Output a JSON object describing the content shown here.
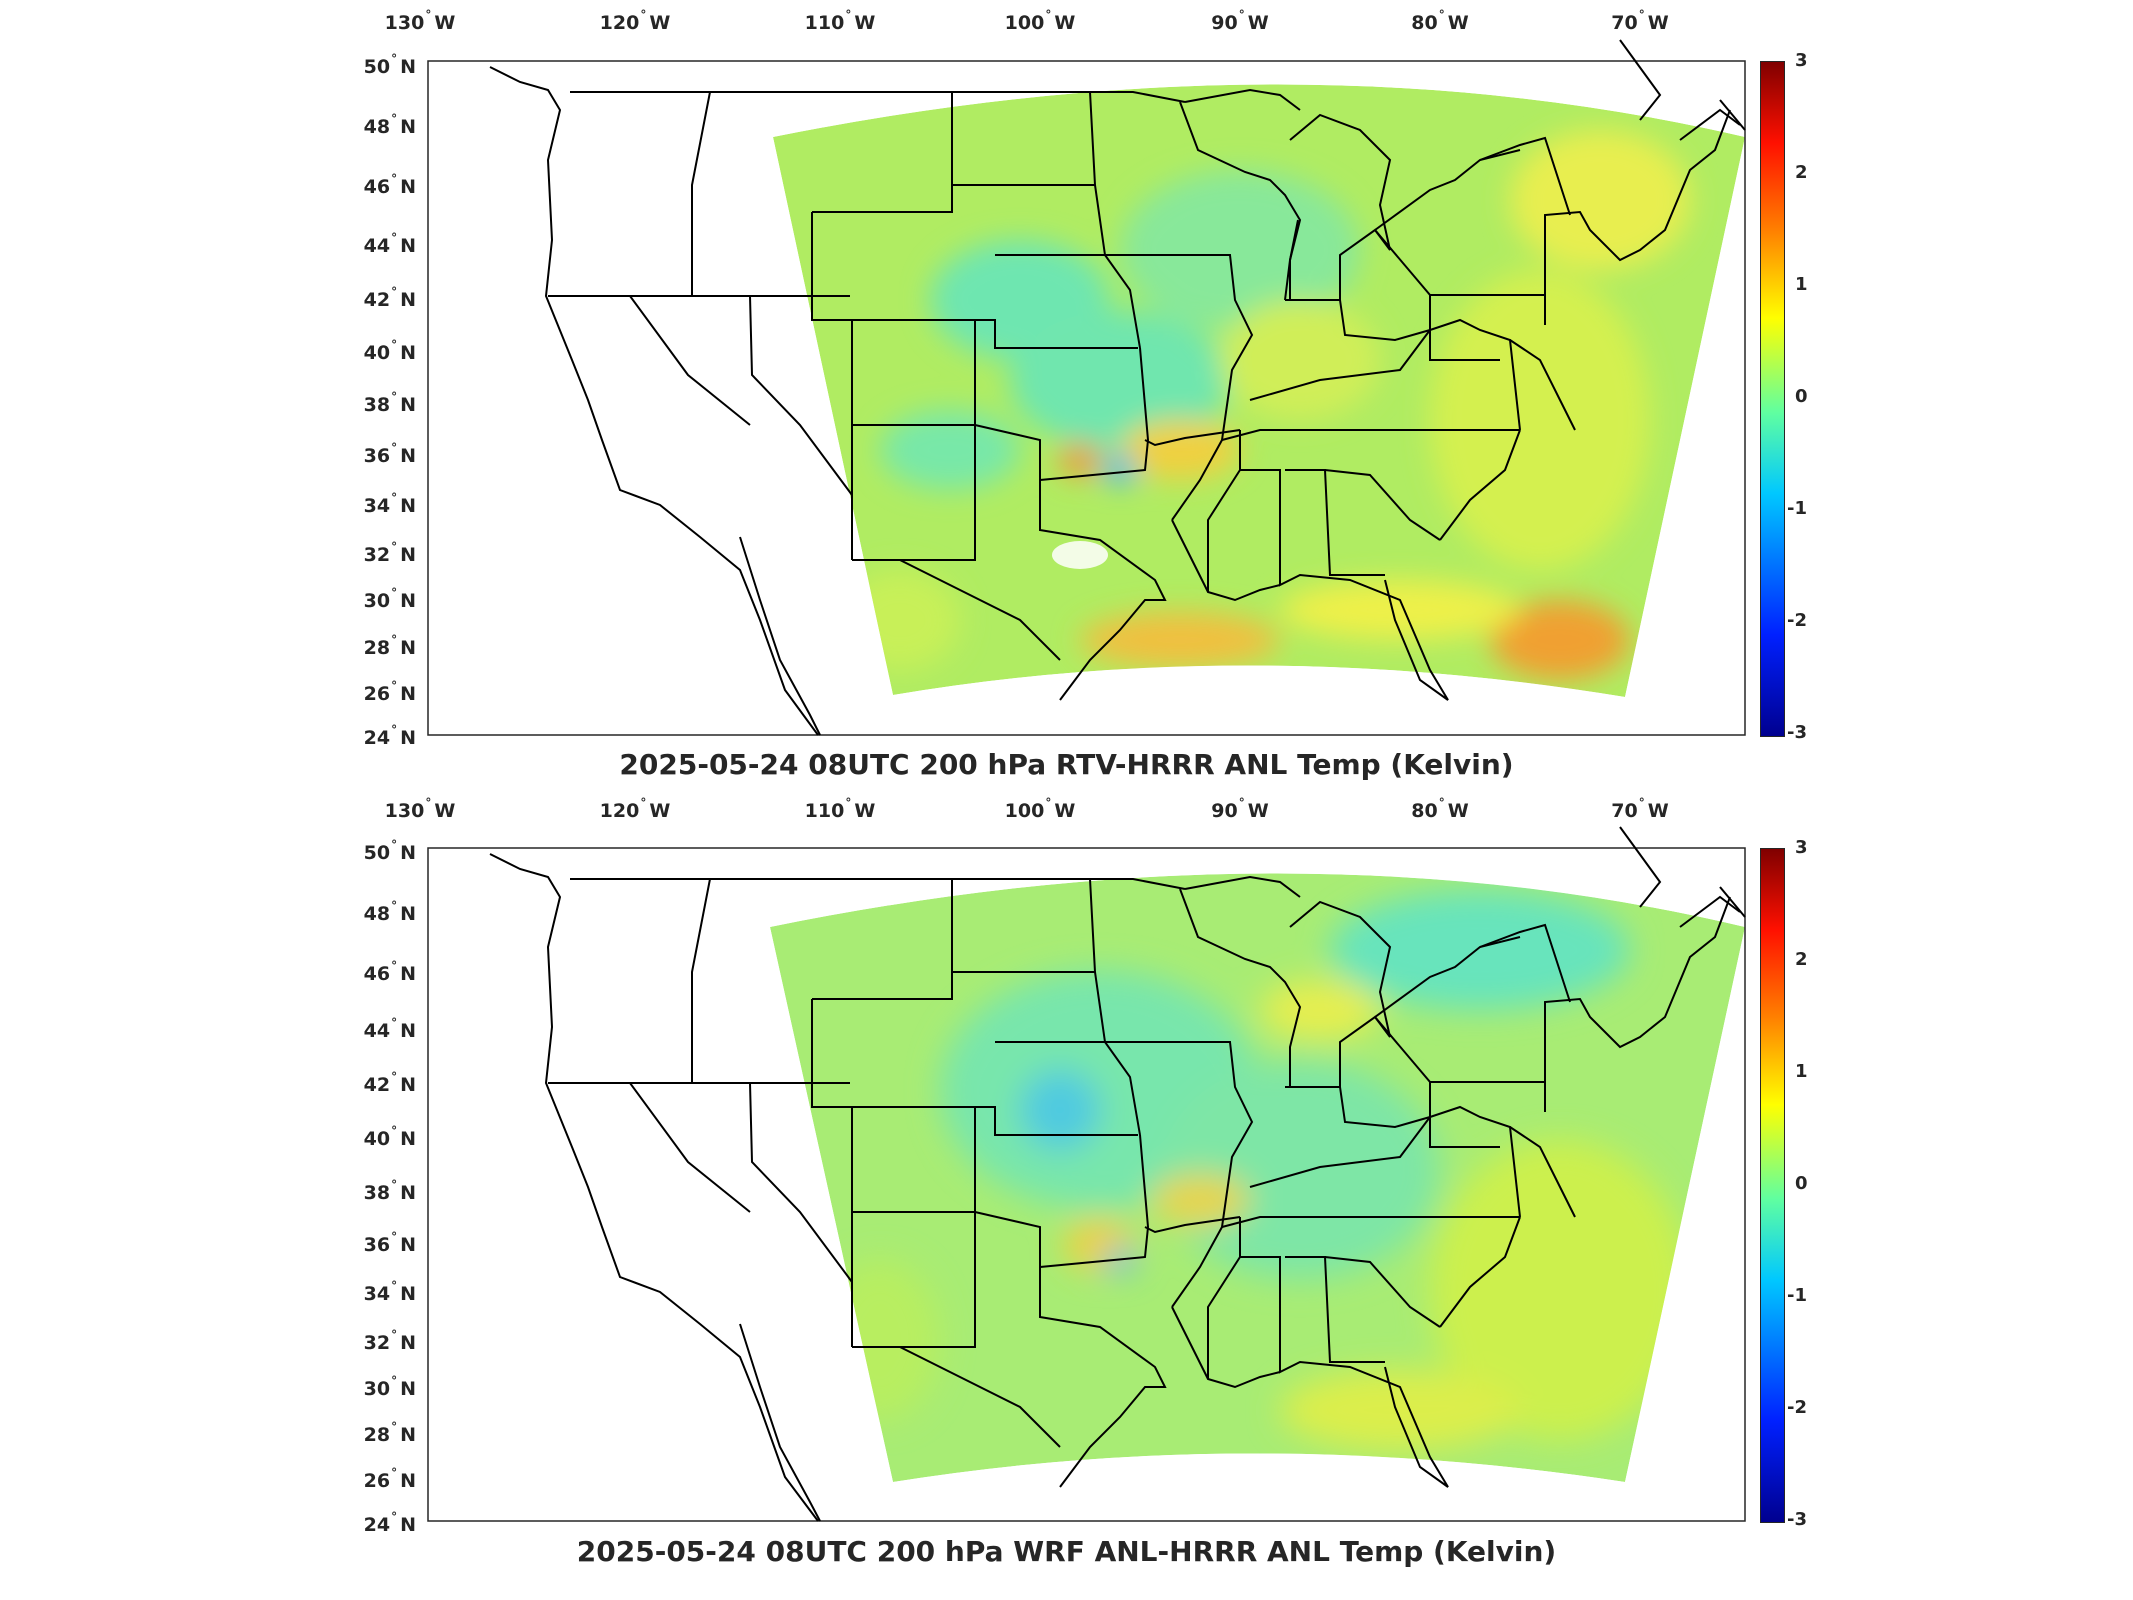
{
  "colors": {
    "field_base": "#b8ee60",
    "coast": "#000000",
    "frame": "#262626",
    "colormap": [
      "#00008f",
      "#0020ff",
      "#00c8ff",
      "#60ffa0",
      "#ffff00",
      "#ff8000",
      "#ff1000",
      "#800000"
    ]
  },
  "map": {
    "projection": "Lambert conformal (HRRR domain)",
    "lon_labels": [
      "130",
      "120",
      "110",
      "100",
      "90",
      "80",
      "70"
    ],
    "lat_labels": [
      "50",
      "48",
      "46",
      "44",
      "42",
      "40",
      "38",
      "36",
      "34",
      "32",
      "30",
      "28",
      "26",
      "24"
    ],
    "lon_suffix": "W",
    "lat_suffix": "N",
    "colorbar_ticks": [
      "3",
      "2",
      "1",
      "0",
      "-1",
      "-2",
      "-3"
    ],
    "colorbar_range": [
      -3,
      3
    ]
  },
  "panels": [
    {
      "id": "top",
      "title": "2025-05-24 08UTC 200 hPa RTV-HRRR ANL Temp (Kelvin)"
    },
    {
      "id": "bottom",
      "title": "2025-05-24 08UTC 200 hPa WRF ANL-HRRR ANL Temp (Kelvin)"
    }
  ]
}
